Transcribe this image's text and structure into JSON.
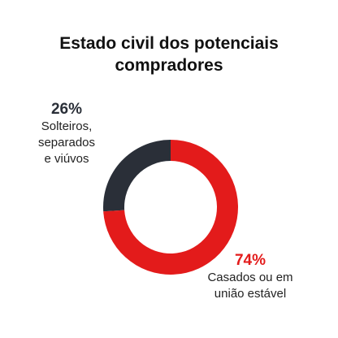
{
  "chart_data": {
    "type": "pie",
    "title_lines": [
      "Estado civil dos potenciais",
      "compradores"
    ],
    "donut": true,
    "slices": [
      {
        "value": 26,
        "percent_label": "26%",
        "label_lines": [
          "Solteiros,",
          "separados",
          "e viúvos"
        ],
        "color": "#2a2f38"
      },
      {
        "value": 74,
        "percent_label": "74%",
        "label_lines": [
          "Casados ou em",
          "união estável"
        ],
        "color": "#e31b1b"
      }
    ]
  }
}
